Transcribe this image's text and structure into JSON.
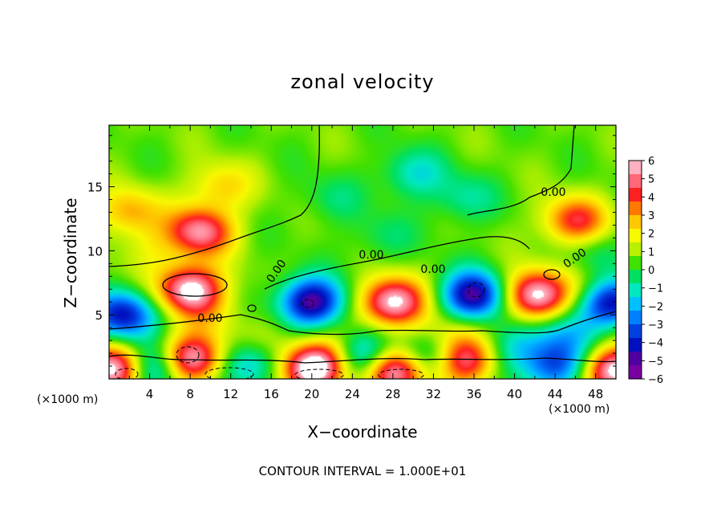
{
  "chart_data": {
    "type": "heatmap",
    "title": "zonal velocity",
    "xlabel": "X−coordinate",
    "ylabel": "Z−coordinate",
    "x_unit_label": "(×1000 m)",
    "contour_note": "CONTOUR INTERVAL = 1.000E+01",
    "x_ticks": [
      4,
      8,
      12,
      16,
      20,
      24,
      28,
      32,
      36,
      40,
      44,
      48
    ],
    "y_ticks": [
      5,
      10,
      15
    ],
    "xlim": [
      0,
      50
    ],
    "ylim": [
      0,
      19.8
    ],
    "colorbar": {
      "ticks": [
        6,
        5,
        4,
        3,
        2,
        1,
        0,
        -1,
        -2,
        -3,
        -4,
        -5,
        -6
      ],
      "range": [
        -6,
        6
      ],
      "colors": [
        "#ffb0c0",
        "#ff6878",
        "#ff2020",
        "#ff7800",
        "#ffc800",
        "#f8f800",
        "#b8f000",
        "#40e000",
        "#00e060",
        "#00e8c0",
        "#00c0ff",
        "#0080ff",
        "#0040e0",
        "#0010c0",
        "#5000a0",
        "#7800a0"
      ]
    },
    "contour_labels": [
      "0.00",
      "0.00",
      "0.00",
      "0.00",
      "0.00",
      "0.00"
    ],
    "features": [
      {
        "type": "jet",
        "x": 8,
        "z": 7,
        "u": 6
      },
      {
        "type": "jet",
        "x": 9,
        "z": 11.5,
        "u": 5
      },
      {
        "type": "jet",
        "x": 28,
        "z": 6,
        "u": 6
      },
      {
        "type": "jet",
        "x": 42,
        "z": 6.5,
        "u": 6
      },
      {
        "type": "jet",
        "x": 46,
        "z": 12.3,
        "u": 4
      },
      {
        "type": "jet",
        "x": 35,
        "z": 1.5,
        "u": 5
      },
      {
        "type": "jet",
        "x": 20,
        "z": 0.8,
        "u": 6
      },
      {
        "type": "jet",
        "x": 28,
        "z": 0.6,
        "u": 6
      },
      {
        "type": "jet",
        "x": 8,
        "z": 1.5,
        "u": 6
      },
      {
        "type": "jet",
        "x": 2,
        "z": 13,
        "u": 2.5
      },
      {
        "type": "jet",
        "x": 11,
        "z": 15,
        "u": 2
      },
      {
        "type": "jet",
        "x": 0.5,
        "z": 0.7,
        "u": 6
      },
      {
        "type": "jet",
        "x": 50,
        "z": 0.7,
        "u": 6
      },
      {
        "type": "jet",
        "x": 48,
        "z": 7,
        "u": 1.5
      },
      {
        "type": "jet",
        "x": 22,
        "z": 1.8,
        "u": 2
      },
      {
        "type": "jet",
        "x": 15,
        "z": 3,
        "u": 1
      },
      {
        "type": "jet",
        "x": 33,
        "z": 3.5,
        "u": 1.5
      },
      {
        "type": "jet",
        "x": 10,
        "z": 5,
        "u": 1
      },
      {
        "type": "jet",
        "x": 45,
        "z": 3.5,
        "u": -2
      },
      {
        "type": "jet",
        "x": 4,
        "z": 10,
        "u": 1
      },
      {
        "type": "jet",
        "x": 48,
        "z": 10,
        "u": -1
      },
      {
        "type": "jet",
        "x": 20,
        "z": 6,
        "u": -6
      },
      {
        "type": "jet",
        "x": 36,
        "z": 6.5,
        "u": -6
      },
      {
        "type": "jet",
        "x": 1.5,
        "z": 5,
        "u": -5
      },
      {
        "type": "jet",
        "x": 49.5,
        "z": 6,
        "u": -6
      },
      {
        "type": "jet",
        "x": 4.5,
        "z": 0.8,
        "u": -4
      },
      {
        "type": "jet",
        "x": 25,
        "z": 1.8,
        "u": -4
      },
      {
        "type": "jet",
        "x": 31.5,
        "z": 1.8,
        "u": -3
      },
      {
        "type": "jet",
        "x": 14,
        "z": 1.2,
        "u": -3
      },
      {
        "type": "jet",
        "x": 44,
        "z": 1,
        "u": -4
      },
      {
        "type": "jet",
        "x": 40,
        "z": 2.5,
        "u": -2
      },
      {
        "type": "jet",
        "x": 30,
        "z": 16,
        "u": -2
      },
      {
        "type": "jet",
        "x": 35,
        "z": 14,
        "u": -1.5
      },
      {
        "type": "jet",
        "x": 22,
        "z": 14,
        "u": -1
      },
      {
        "type": "jet",
        "x": 27,
        "z": 11,
        "u": -1
      }
    ]
  }
}
